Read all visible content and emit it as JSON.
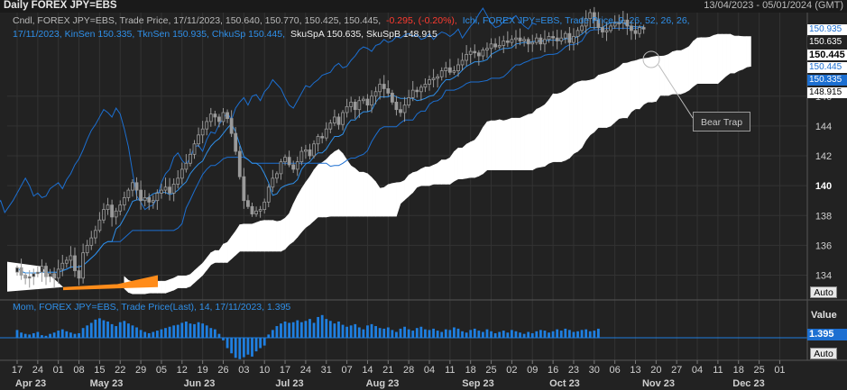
{
  "window": {
    "title": "Daily FOREX JPY=EBS",
    "date_range": "13/04/2023 - 05/01/2024 (GMT)"
  },
  "main_legend": {
    "line1_grey": "Cndl, FOREX JPY=EBS, Trade Price, 17/11/2023, 150.640, 150.770, 150.425, 150.445,",
    "line1_change": "-0.295, (-0.20%),",
    "line1_ichi": "Ichi, FOREX JPY=EBS, Trade Price, 9, 26, 52, 26, 26,",
    "line2_blue": "17/11/2023, KinSen 150.335, TknSen 150.935, ChkuSp 150.445,",
    "line2_white": "SkuSpA 150.635, SkuSpB 148.915"
  },
  "price_pills": [
    {
      "text": "150.935",
      "bg": "#ffffff",
      "fg": "#1c6fd1"
    },
    {
      "text": "150.635",
      "bg": "#222222",
      "fg": "#ffffff"
    },
    {
      "text": "150.445",
      "bg": "#ffffff",
      "fg": "#000000"
    },
    {
      "text": "150.445",
      "bg": "#ffffff",
      "fg": "#1c6fd1"
    },
    {
      "text": "150.335",
      "bg": "#1c6fd1",
      "fg": "#ffffff"
    },
    {
      "text": "148.915",
      "bg": "#ffffff",
      "fg": "#000000"
    }
  ],
  "annotation": {
    "text": "Bear Trap"
  },
  "momentum_legend": {
    "text": "Mom, FOREX JPY=EBS, Trade Price(Last), 14, 17/11/2023, 1.395"
  },
  "momentum_panel": {
    "value_label": "Value",
    "current_value": "1.395"
  },
  "buttons": {
    "auto_top": "Auto",
    "auto_bottom": "Auto"
  },
  "colors": {
    "candle": "#9a9a9a",
    "kijun": "#1c6fd1",
    "tenkan": "#2f8fe8",
    "cloud_bull": "#ffffff",
    "cloud_bear": "#ff8c1a",
    "momentum": "#1f7fe0"
  },
  "chart_data": [
    {
      "type": "candlestick",
      "title": "Daily FOREX JPY=EBS",
      "xlabel": "",
      "ylabel": "",
      "ylim": [
        132.4,
        151.6
      ],
      "y_ticks": [
        134,
        136,
        138,
        140,
        142,
        144,
        146
      ],
      "x_day_ticks": [
        "17",
        "24",
        "01",
        "08",
        "15",
        "22",
        "29",
        "05",
        "12",
        "19",
        "26",
        "03",
        "10",
        "17",
        "24",
        "31",
        "07",
        "14",
        "21",
        "28",
        "04",
        "11",
        "18",
        "25",
        "02",
        "09",
        "16",
        "23",
        "30",
        "06",
        "13",
        "20",
        "27",
        "04",
        "11",
        "18",
        "25",
        "01"
      ],
      "x_month_labels": [
        "Apr 23",
        "May 23",
        "Jun 23",
        "Jul 23",
        "Aug 23",
        "Sep 23",
        "Oct 23",
        "Nov 23",
        "Dec 23"
      ],
      "close_series": [
        134.5,
        134.0,
        133.8,
        133.9,
        134.1,
        134.2,
        134.6,
        133.9,
        134.1,
        133.8,
        134.4,
        134.8,
        135.0,
        135.3,
        134.3,
        133.8,
        135.5,
        136.0,
        136.5,
        137.0,
        137.7,
        138.4,
        138.7,
        137.9,
        138.3,
        138.7,
        139.2,
        139.7,
        140.2,
        139.7,
        139.0,
        139.2,
        138.9,
        139.0,
        139.5,
        139.7,
        139.9,
        139.5,
        140.1,
        140.5,
        141.1,
        141.5,
        142.1,
        142.8,
        143.4,
        143.8,
        144.3,
        144.8,
        144.6,
        144.3,
        144.9,
        144.5,
        143.5,
        142.3,
        140.6,
        139.0,
        138.6,
        138.1,
        138.3,
        138.4,
        138.9,
        139.9,
        140.5,
        140.8,
        141.6,
        141.9,
        141.4,
        141.1,
        141.6,
        142.3,
        142.4,
        142.0,
        142.8,
        143.3,
        143.2,
        143.8,
        144.2,
        144.6,
        144.1,
        144.9,
        145.3,
        145.6,
        145.1,
        145.7,
        145.8,
        145.4,
        146.0,
        146.3,
        146.8,
        146.5,
        146.2,
        145.6,
        145.1,
        144.9,
        145.4,
        145.9,
        146.4,
        146.3,
        146.6,
        146.8,
        147.1,
        147.2,
        147.3,
        147.7,
        147.9,
        147.6,
        147.7,
        148.1,
        148.4,
        148.8,
        149.0,
        148.9,
        148.7,
        149.1,
        149.2,
        149.5,
        149.3,
        149.4,
        149.7,
        149.6,
        149.8,
        149.9,
        149.7,
        149.8,
        149.5,
        149.6,
        149.9,
        149.5,
        149.8,
        150.0,
        149.9,
        149.7,
        149.9,
        150.2,
        149.6,
        150.0,
        150.4,
        150.7,
        151.2,
        151.6,
        151.1,
        150.6,
        150.3,
        150.4,
        150.7,
        150.9,
        150.9,
        151.1,
        150.7,
        150.4,
        150.2,
        150.6,
        150.5
      ],
      "series": [
        {
          "name": "KinSen",
          "last_value": 150.335
        },
        {
          "name": "TknSen",
          "last_value": 150.935
        },
        {
          "name": "ChkuSp",
          "last_value": 150.445
        },
        {
          "name": "SkuSpA",
          "last_value": 150.635
        },
        {
          "name": "SkuSpB",
          "last_value": 148.915
        }
      ],
      "last_candle": {
        "date": "17/11/2023",
        "open": 150.64,
        "high": 150.77,
        "low": 150.425,
        "close": 150.445,
        "change": -0.295,
        "change_pct": -0.2
      }
    },
    {
      "type": "bar",
      "title": "Mom, FOREX JPY=EBS, Trade Price(Last), 14",
      "xlabel": "",
      "ylabel": "Value",
      "period": 14,
      "last_value": 1.395,
      "momentum_series": [
        1.2,
        0.8,
        0.6,
        0.5,
        0.7,
        0.9,
        0.4,
        0.3,
        0.6,
        0.8,
        1.1,
        1.3,
        1.0,
        0.8,
        0.6,
        0.7,
        1.5,
        1.9,
        2.3,
        2.8,
        3.0,
        2.7,
        2.5,
        2.1,
        1.8,
        2.4,
        2.6,
        2.2,
        1.9,
        1.6,
        1.2,
        0.9,
        0.7,
        0.9,
        1.1,
        1.3,
        1.5,
        1.7,
        1.9,
        2.0,
        2.3,
        2.5,
        2.2,
        2.1,
        2.4,
        2.2,
        1.9,
        1.5,
        1.3,
        0.6,
        -0.4,
        -1.6,
        -2.4,
        -3.1,
        -3.3,
        -3.0,
        -2.6,
        -2.9,
        -2.1,
        -1.6,
        -1.2,
        0.5,
        1.2,
        1.8,
        2.2,
        2.5,
        2.3,
        2.4,
        2.7,
        2.4,
        2.6,
        2.9,
        2.3,
        3.2,
        3.5,
        2.9,
        2.6,
        2.2,
        2.5,
        2.0,
        1.7,
        1.9,
        2.1,
        1.6,
        1.3,
        1.9,
        2.1,
        1.8,
        1.5,
        1.4,
        1.6,
        1.2,
        0.9,
        1.4,
        1.7,
        1.3,
        1.1,
        1.5,
        1.7,
        1.3,
        1.2,
        1.4,
        1.1,
        0.9,
        1.3,
        1.2,
        1.6,
        1.4,
        1.0,
        0.8,
        1.2,
        1.4,
        1.1,
        0.9,
        1.3,
        1.0,
        0.7,
        0.9,
        1.1,
        0.8,
        1.2,
        1.0,
        0.8,
        0.6,
        0.9,
        0.7,
        1.0,
        1.2,
        1.1,
        0.8,
        1.0,
        1.3,
        1.1,
        1.4,
        1.2,
        0.9,
        1.0,
        1.2,
        1.3,
        1.0,
        1.1,
        1.395
      ]
    }
  ]
}
